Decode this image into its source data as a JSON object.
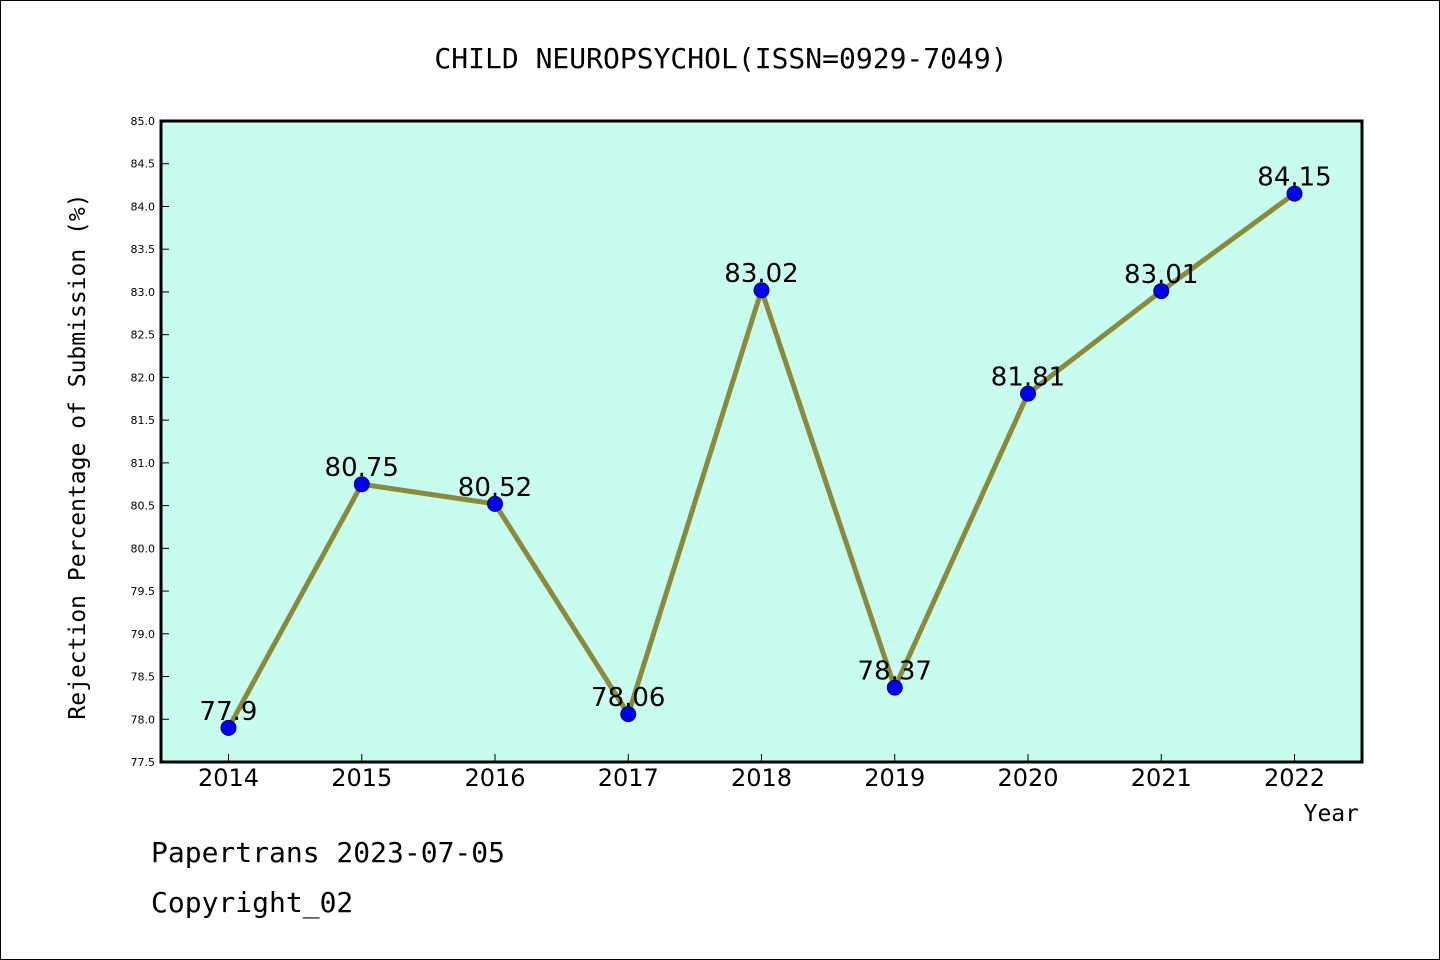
{
  "chart_data": {
    "type": "line",
    "title": "CHILD NEUROPSYCHOL(ISSN=0929-7049)",
    "xlabel": "Year",
    "ylabel": "Rejection Percentage of Submission (%)",
    "x": [
      "2014",
      "2015",
      "2016",
      "2017",
      "2018",
      "2019",
      "2020",
      "2021",
      "2022"
    ],
    "series": [
      {
        "values": [
          77.9,
          80.75,
          80.52,
          78.06,
          83.02,
          78.37,
          81.81,
          83.01,
          84.15
        ],
        "labels": [
          "77.9",
          "80.75",
          "80.52",
          "78.06",
          "83.02",
          "78.37",
          "81.81",
          "83.01",
          "84.15"
        ]
      }
    ],
    "ylim": [
      77.5,
      85.0
    ],
    "yticks": [
      "77.5",
      "78.0",
      "78.5",
      "79.0",
      "79.5",
      "80.0",
      "80.5",
      "81.0",
      "81.5",
      "82.0",
      "82.5",
      "83.0",
      "83.5",
      "84.0",
      "84.5",
      "85.0"
    ],
    "grid": false,
    "colors": {
      "plot_background": "#c8fcee",
      "line": "#8b8a3a",
      "marker": "#0000ee"
    }
  },
  "footer": {
    "line1": "Papertrans 2023-07-05",
    "line2": "Copyright_02"
  }
}
